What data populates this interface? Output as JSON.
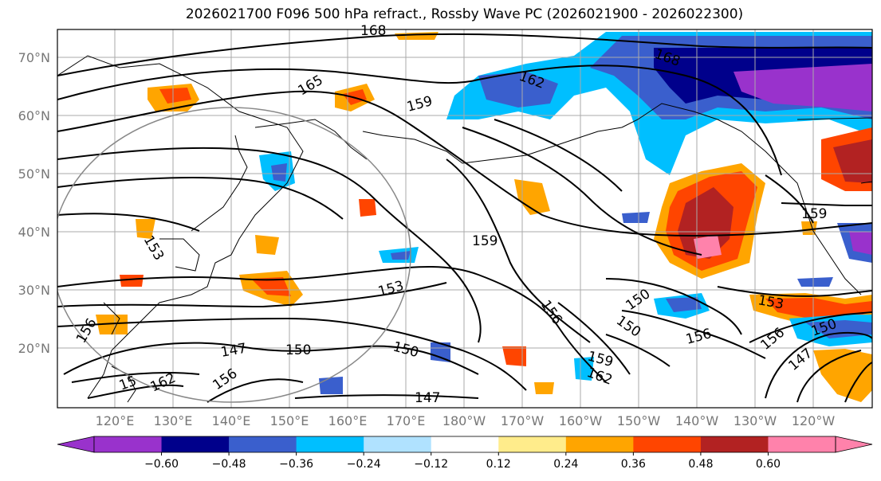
{
  "title": "2026021700 F096 500 hPa refract., Rossby Wave PC (2026021900 - 2026022300)",
  "lat_labels": [
    "70°N",
    "60°N",
    "50°N",
    "40°N",
    "30°N",
    "20°N"
  ],
  "lon_labels": [
    "120°E",
    "130°E",
    "140°E",
    "150°E",
    "160°E",
    "170°E",
    "180°W",
    "170°W",
    "160°W",
    "150°W",
    "140°W",
    "130°W",
    "120°W"
  ],
  "colorbar": {
    "ticks": [
      "−0.60",
      "−0.48",
      "−0.36",
      "−0.24",
      "−0.12",
      "0.12",
      "0.24",
      "0.36",
      "0.48",
      "0.60"
    ],
    "colors": [
      "#9932cc",
      "#00008b",
      "#3a5fcd",
      "#00bfff",
      "#b0e2ff",
      "#ffffff",
      "#ffec8b",
      "#ffa500",
      "#ff4500",
      "#b22222",
      "#ff82ab"
    ]
  },
  "contour_labels": [
    "168",
    "165",
    "162",
    "159",
    "159",
    "159",
    "156",
    "156",
    "156",
    "156",
    "156",
    "153",
    "153",
    "153",
    "150",
    "150",
    "150",
    "150",
    "150",
    "147",
    "147",
    "147",
    "162",
    "162",
    "159",
    "168",
    "15"
  ]
}
